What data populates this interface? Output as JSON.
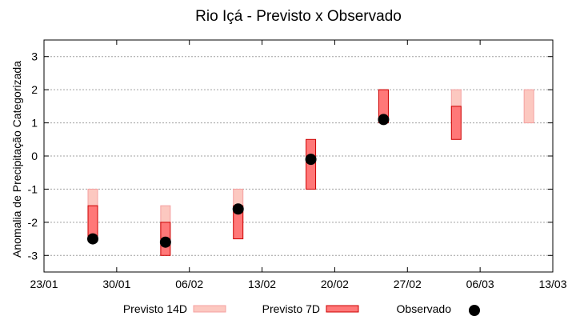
{
  "chart_data": {
    "type": "range-bar",
    "title": "Rio Içá - Previsto x Observado",
    "ylabel": "Anomalia de Precipitação Categorizada",
    "xlabel": "",
    "ylim": [
      -3.5,
      3.5
    ],
    "y_ticks": [
      -3,
      -2,
      -1,
      0,
      1,
      2,
      3
    ],
    "y_tick_labels": [
      "-3",
      "-2",
      "-1",
      "0",
      "1",
      "2",
      "3"
    ],
    "x_tick_labels": [
      "23/01",
      "30/01",
      "06/02",
      "13/02",
      "20/02",
      "27/02",
      "06/03",
      "13/03"
    ],
    "x_tick_count": 8,
    "grid": "horizontal-dotted",
    "legend_position": "bottom",
    "colors": {
      "previsto_14d_fill": "#fcc8c0",
      "previsto_14d_stroke": "#f4a0a0",
      "previsto_7d_fill": "#ff7878",
      "previsto_7d_stroke": "#cc0000",
      "observado": "#000000"
    },
    "series": [
      {
        "name": "Previsto 14D",
        "kind": "range",
        "points": [
          {
            "x": 4.7,
            "low": -2,
            "high": -1
          },
          {
            "x": 11.7,
            "low": -2.5,
            "high": -1.5
          },
          {
            "x": 18.7,
            "low": -2,
            "high": -1
          },
          {
            "x": 32.7,
            "low": 1,
            "high": 2
          },
          {
            "x": 39.7,
            "low": 1,
            "high": 2
          },
          {
            "x": 46.7,
            "low": 1,
            "high": 2
          }
        ]
      },
      {
        "name": "Previsto 7D",
        "kind": "range",
        "points": [
          {
            "x": 4.7,
            "low": -2.5,
            "high": -1.5
          },
          {
            "x": 11.7,
            "low": -3,
            "high": -2
          },
          {
            "x": 18.7,
            "low": -2.5,
            "high": -1.5
          },
          {
            "x": 25.7,
            "low": -1,
            "high": 0.5
          },
          {
            "x": 32.7,
            "low": 1,
            "high": 2
          },
          {
            "x": 39.7,
            "low": 0.5,
            "high": 1.5
          }
        ]
      },
      {
        "name": "Observado",
        "kind": "point",
        "points": [
          {
            "x": 4.7,
            "y": -2.5
          },
          {
            "x": 11.7,
            "y": -2.6
          },
          {
            "x": 18.7,
            "y": -1.6
          },
          {
            "x": 25.7,
            "y": -0.1
          },
          {
            "x": 32.7,
            "y": 1.1
          }
        ]
      }
    ]
  }
}
